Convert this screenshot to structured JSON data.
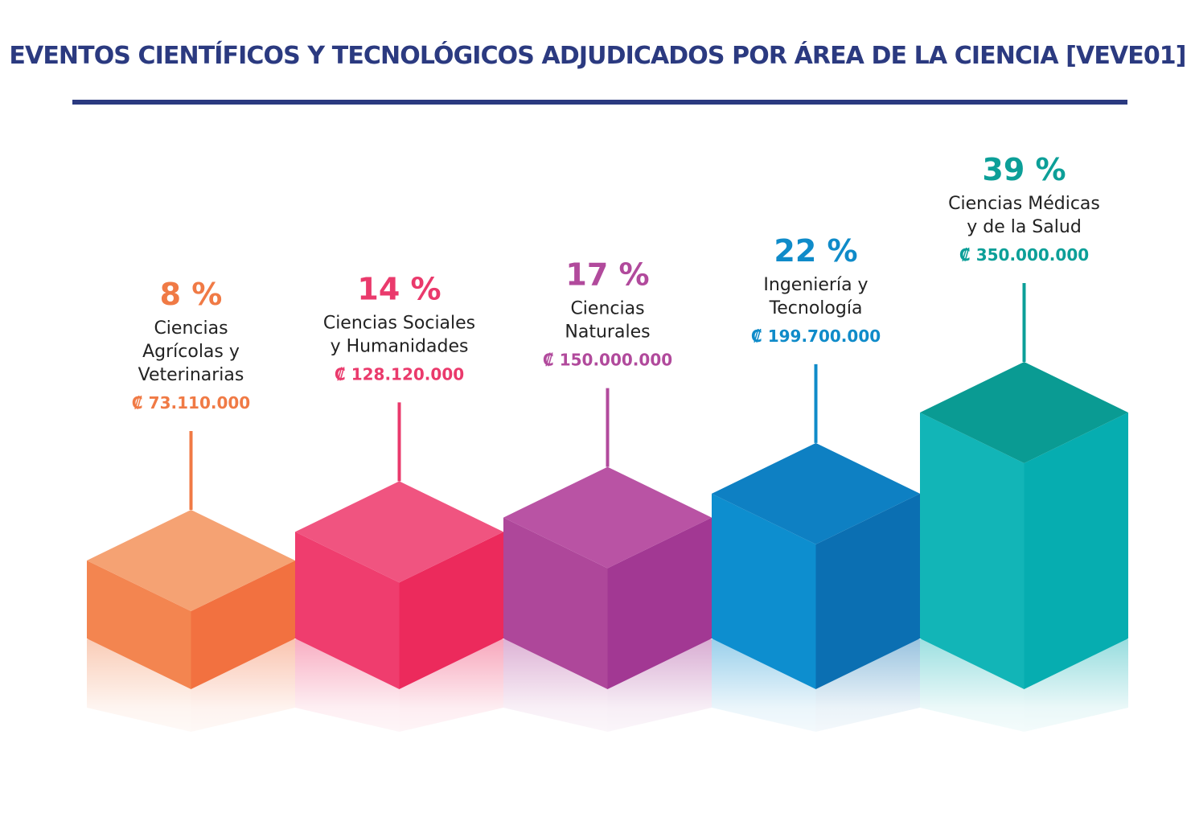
{
  "chart_data": {
    "type": "bar",
    "title": "EVENTOS CIENTÍFICOS Y TECNOLÓGICOS ADJUDICADOS POR ÁREA DE LA CIENCIA [VEVE01]",
    "xlabel": "",
    "ylabel": "",
    "ylim": [
      0,
      40
    ],
    "grid": false,
    "categories": [
      "Ciencias Agrícolas y Veterinarias",
      "Ciencias Sociales y Humanidades",
      "Ciencias Naturales",
      "Ingeniería y Tecnología",
      "Ciencias Médicas y de la Salud"
    ],
    "values": [
      8,
      14,
      17,
      22,
      39
    ],
    "bars": [
      {
        "percent_label": "8 %",
        "category_lines": [
          "Ciencias",
          "Agrícolas y",
          "Veterinarias"
        ],
        "amount_label": "₡ 73.110.000",
        "value": 8,
        "colors": {
          "label": "#f07a45",
          "top": "#f5a273",
          "left": "#f38550",
          "right": "#f27140"
        }
      },
      {
        "percent_label": "14 %",
        "category_lines": [
          "Ciencias Sociales",
          "y Humanidades"
        ],
        "amount_label": "₡ 128.120.000",
        "value": 14,
        "colors": {
          "label": "#ea3a6c",
          "top": "#f05480",
          "left": "#ef3d6e",
          "right": "#ec2a5c"
        }
      },
      {
        "percent_label": "17 %",
        "category_lines": [
          "Ciencias",
          "Naturales"
        ],
        "amount_label": "₡ 150.000.000",
        "value": 17,
        "colors": {
          "label": "#b14a9c",
          "top": "#b953a4",
          "left": "#ae479a",
          "right": "#a23893"
        }
      },
      {
        "percent_label": "22 %",
        "category_lines": [
          "Ingeniería y",
          "Tecnología"
        ],
        "amount_label": "₡ 199.700.000",
        "value": 22,
        "colors": {
          "label": "#0f8bc9",
          "top": "#0e80c3",
          "left": "#0d8ecf",
          "right": "#0b6fb2"
        }
      },
      {
        "percent_label": "39 %",
        "category_lines": [
          "Ciencias Médicas",
          "y de la Salud"
        ],
        "amount_label": "₡ 350.000.000",
        "value": 39,
        "colors": {
          "label": "#0c9f98",
          "top": "#0a9b93",
          "left": "#12b5b7",
          "right": "#06adb0"
        }
      }
    ]
  },
  "colors": {
    "title": "#2b3a80",
    "rule": "#2b3a80"
  }
}
